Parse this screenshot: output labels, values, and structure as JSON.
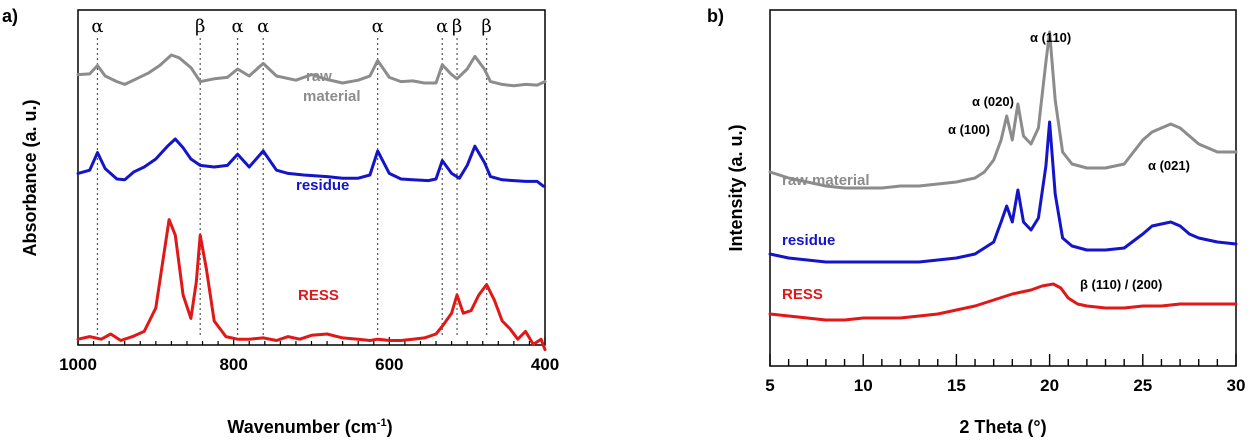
{
  "panels": {
    "a": "a)",
    "b": "b)"
  },
  "colors": {
    "raw": "#8c8c8c",
    "residue": "#1414c8",
    "ress": "#e01818",
    "axis": "#000000",
    "guide": "#555555"
  },
  "chart_data": [
    {
      "type": "line",
      "xlabel": "Wavenumber (cm",
      "xlabel_sup": "-1",
      "xlabel_end": ")",
      "ylabel": "Absorbance (a. u.)",
      "xlim": [
        1000,
        400
      ],
      "x_reversed": true,
      "x_ticks": [
        "1000",
        "800",
        "600",
        "400"
      ],
      "y_ticks_shown": false,
      "peak_markers": [
        {
          "x": 975,
          "symbol": "α"
        },
        {
          "x": 843,
          "symbol": "β"
        },
        {
          "x": 795,
          "symbol": "α"
        },
        {
          "x": 762,
          "symbol": "α"
        },
        {
          "x": 615,
          "symbol": "α"
        },
        {
          "x": 532,
          "symbol": "α"
        },
        {
          "x": 513,
          "symbol": "β"
        },
        {
          "x": 475,
          "symbol": "β"
        }
      ],
      "series": [
        {
          "name": "raw material",
          "label_lines": [
            "raw",
            "material"
          ],
          "x": [
            1000,
            985,
            975,
            965,
            950,
            940,
            925,
            910,
            895,
            880,
            870,
            855,
            843,
            825,
            808,
            795,
            780,
            762,
            745,
            720,
            700,
            680,
            660,
            640,
            625,
            615,
            600,
            585,
            570,
            555,
            540,
            532,
            520,
            513,
            500,
            490,
            478,
            470,
            455,
            440,
            425,
            410,
            400
          ],
          "y": [
            0.72,
            0.73,
            0.85,
            0.7,
            0.62,
            0.58,
            0.66,
            0.74,
            0.85,
            1.0,
            0.96,
            0.82,
            0.62,
            0.66,
            0.68,
            0.8,
            0.7,
            0.88,
            0.7,
            0.64,
            0.72,
            0.65,
            0.6,
            0.64,
            0.7,
            0.92,
            0.68,
            0.62,
            0.63,
            0.6,
            0.6,
            0.86,
            0.72,
            0.66,
            0.8,
            0.98,
            0.8,
            0.62,
            0.58,
            0.56,
            0.58,
            0.57,
            0.62
          ]
        },
        {
          "name": "residue",
          "x": [
            1000,
            985,
            975,
            965,
            950,
            940,
            928,
            915,
            900,
            885,
            875,
            865,
            855,
            843,
            825,
            808,
            795,
            780,
            762,
            745,
            730,
            710,
            680,
            660,
            640,
            625,
            615,
            600,
            585,
            570,
            550,
            540,
            532,
            520,
            510,
            500,
            490,
            478,
            470,
            455,
            440,
            425,
            410,
            402
          ],
          "y": [
            0.52,
            0.56,
            0.78,
            0.58,
            0.45,
            0.44,
            0.54,
            0.6,
            0.7,
            0.86,
            0.95,
            0.84,
            0.7,
            0.62,
            0.6,
            0.62,
            0.76,
            0.6,
            0.8,
            0.56,
            0.52,
            0.5,
            0.48,
            0.46,
            0.46,
            0.5,
            0.8,
            0.52,
            0.45,
            0.44,
            0.43,
            0.45,
            0.68,
            0.52,
            0.46,
            0.62,
            0.86,
            0.66,
            0.48,
            0.44,
            0.43,
            0.42,
            0.42,
            0.36
          ]
        },
        {
          "name": "RESS",
          "x": [
            1000,
            985,
            970,
            958,
            945,
            930,
            915,
            900,
            890,
            883,
            875,
            865,
            855,
            848,
            843,
            835,
            825,
            810,
            795,
            780,
            762,
            745,
            730,
            715,
            700,
            680,
            660,
            640,
            625,
            615,
            600,
            585,
            570,
            555,
            540,
            532,
            520,
            513,
            505,
            495,
            485,
            475,
            465,
            455,
            445,
            435,
            425,
            415,
            405,
            400
          ],
          "y": [
            0.06,
            0.08,
            0.06,
            0.1,
            0.05,
            0.08,
            0.12,
            0.3,
            0.7,
            0.98,
            0.86,
            0.4,
            0.22,
            0.5,
            0.86,
            0.6,
            0.2,
            0.08,
            0.06,
            0.06,
            0.07,
            0.05,
            0.08,
            0.06,
            0.09,
            0.1,
            0.07,
            0.06,
            0.05,
            0.06,
            0.05,
            0.05,
            0.06,
            0.07,
            0.1,
            0.16,
            0.26,
            0.4,
            0.26,
            0.28,
            0.4,
            0.48,
            0.36,
            0.2,
            0.14,
            0.06,
            0.12,
            0.02,
            0.06,
            -0.02
          ]
        }
      ]
    },
    {
      "type": "line",
      "xlabel": "2 Theta (°)",
      "ylabel": "Intensity (a. u.)",
      "xlim": [
        5,
        30
      ],
      "x_ticks": [
        "5",
        "10",
        "15",
        "20",
        "25",
        "30"
      ],
      "y_ticks_shown": false,
      "series": [
        {
          "name": "raw material",
          "x": [
            5,
            6,
            7,
            8,
            9,
            10,
            11,
            12,
            13,
            14,
            15,
            16,
            16.5,
            17,
            17.4,
            17.7,
            18.0,
            18.3,
            18.6,
            19.0,
            19.4,
            19.8,
            20.0,
            20.3,
            20.7,
            21.2,
            22,
            23,
            24,
            25,
            25.5,
            26,
            26.5,
            27,
            27.5,
            28,
            29,
            30
          ],
          "y": [
            0.3,
            0.27,
            0.25,
            0.23,
            0.22,
            0.22,
            0.22,
            0.23,
            0.23,
            0.24,
            0.25,
            0.27,
            0.3,
            0.36,
            0.46,
            0.58,
            0.46,
            0.64,
            0.48,
            0.44,
            0.52,
            0.85,
            1.0,
            0.66,
            0.4,
            0.34,
            0.32,
            0.32,
            0.34,
            0.46,
            0.5,
            0.52,
            0.54,
            0.52,
            0.48,
            0.44,
            0.4,
            0.4
          ]
        },
        {
          "name": "residue",
          "x": [
            5,
            6,
            7,
            8,
            9,
            10,
            11,
            12,
            13,
            14,
            15,
            16,
            16.5,
            17,
            17.4,
            17.7,
            18.0,
            18.3,
            18.6,
            19.0,
            19.4,
            19.8,
            20.0,
            20.3,
            20.7,
            21.2,
            22,
            23,
            24,
            25,
            25.5,
            26,
            26.5,
            27,
            27.5,
            28,
            29,
            30
          ],
          "y": [
            0.1,
            0.08,
            0.07,
            0.06,
            0.06,
            0.06,
            0.06,
            0.06,
            0.06,
            0.07,
            0.08,
            0.1,
            0.13,
            0.16,
            0.26,
            0.34,
            0.26,
            0.42,
            0.26,
            0.22,
            0.28,
            0.54,
            0.76,
            0.4,
            0.18,
            0.14,
            0.12,
            0.12,
            0.13,
            0.2,
            0.24,
            0.25,
            0.26,
            0.24,
            0.2,
            0.18,
            0.16,
            0.15
          ]
        },
        {
          "name": "RESS",
          "x": [
            5,
            6,
            7,
            8,
            9,
            10,
            11,
            12,
            13,
            14,
            15,
            16,
            17,
            18,
            19,
            19.6,
            20.2,
            20.6,
            21,
            21.5,
            22,
            23,
            24,
            25,
            26,
            27,
            28,
            29,
            30
          ],
          "y": [
            -0.12,
            -0.13,
            -0.14,
            -0.15,
            -0.15,
            -0.14,
            -0.14,
            -0.14,
            -0.13,
            -0.12,
            -0.1,
            -0.08,
            -0.05,
            -0.02,
            0.0,
            0.02,
            0.03,
            0.01,
            -0.04,
            -0.07,
            -0.08,
            -0.09,
            -0.09,
            -0.08,
            -0.08,
            -0.07,
            -0.07,
            -0.07,
            -0.07
          ]
        }
      ],
      "peak_labels": [
        {
          "text": "α (110)",
          "x": 20.0
        },
        {
          "text": "α (020)",
          "x": 18.3
        },
        {
          "text": "α (100)",
          "x": 17.5
        },
        {
          "text": "α (021)",
          "x": 26.5
        },
        {
          "text": "β (110) / (200)",
          "x": 21.2
        }
      ]
    }
  ]
}
